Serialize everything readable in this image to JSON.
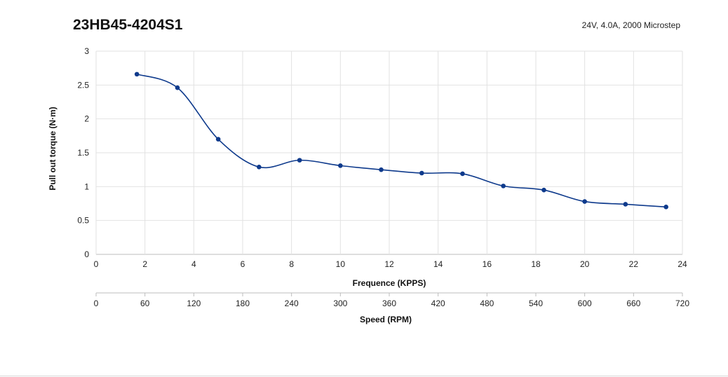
{
  "chart_data": {
    "type": "line",
    "title": "23HB45-4204S1",
    "subtitle": "24V,  4.0A,  2000 Microstep",
    "xlabel": "Frequence (KPPS)",
    "x2label": "Speed (RPM)",
    "ylabel": "Pull out torque (N·m)",
    "xlim": [
      0,
      24
    ],
    "x2lim": [
      0,
      720
    ],
    "ylim": [
      0,
      3
    ],
    "xticks": [
      0,
      2,
      4,
      6,
      8,
      10,
      12,
      14,
      16,
      18,
      20,
      22,
      24
    ],
    "x2ticks": [
      0,
      60,
      120,
      180,
      240,
      300,
      360,
      420,
      480,
      540,
      600,
      660,
      720
    ],
    "yticks": [
      0,
      0.5,
      1,
      1.5,
      2,
      2.5,
      3
    ],
    "grid": true,
    "line_color": "#0e3a8c",
    "series": [
      {
        "x": [
          1.67,
          3.33,
          5.0,
          6.67,
          8.33,
          10.0,
          11.67,
          13.33,
          15.0,
          16.67,
          18.33,
          20.0,
          21.67,
          23.33
        ],
        "y": [
          2.66,
          2.46,
          1.7,
          1.29,
          1.39,
          1.31,
          1.25,
          1.2,
          1.19,
          1.01,
          0.95,
          0.78,
          0.74,
          0.7
        ]
      }
    ]
  }
}
